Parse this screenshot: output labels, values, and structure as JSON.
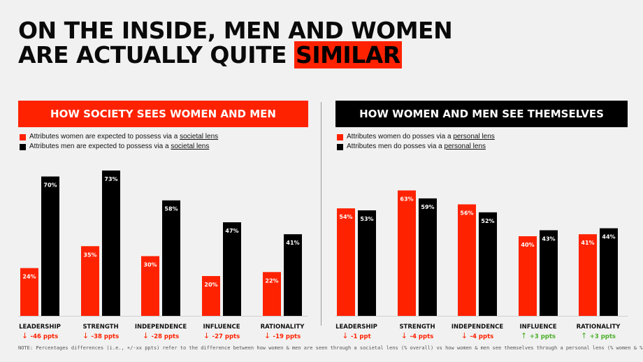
{
  "title": {
    "line1": "ON THE INSIDE, MEN AND WOMEN",
    "line2_prefix": "ARE ACTUALLY QUITE ",
    "line2_highlight": "SIMILAR"
  },
  "colors": {
    "women": "#ff2200",
    "men": "#000000",
    "down": "#ff2200",
    "up": "#4caf2a"
  },
  "note": "NOTE: Percentages differences (i.e., +/-xx ppts) refer to the difference between how women & men are seen through a societal lens (% overall) vs how women & men see themselves through a personal lens (% women & % men)",
  "chart_data": [
    {
      "type": "bar",
      "title": "HOW SOCIETY SEES WOMEN AND MEN",
      "legend": [
        {
          "text": "Attributes women are expected to possess via a ",
          "link": "societal lens"
        },
        {
          "text": "Attributes men are expected to possess via a ",
          "link": "societal lens"
        }
      ],
      "categories": [
        "LEADERSHIP",
        "STRENGTH",
        "INDEPENDENCE",
        "INFLUENCE",
        "RATIONALITY"
      ],
      "series": [
        {
          "values": [
            24,
            35,
            30,
            20,
            22
          ],
          "labels": [
            "24%",
            "35%",
            "30%",
            "20%",
            "22%"
          ]
        },
        {
          "values": [
            70,
            73,
            58,
            47,
            41
          ],
          "labels": [
            "70%",
            "73%",
            "58%",
            "47%",
            "41%"
          ]
        }
      ],
      "differences": [
        {
          "arrow": "↓",
          "text": "-46 ppts",
          "dir": "down"
        },
        {
          "arrow": "↓",
          "text": "-38 ppts",
          "dir": "down"
        },
        {
          "arrow": "↓",
          "text": "-28 ppts",
          "dir": "down"
        },
        {
          "arrow": "↓",
          "text": "-27 ppts",
          "dir": "down"
        },
        {
          "arrow": "↓",
          "text": "-19 ppts",
          "dir": "down"
        }
      ],
      "ylim": [
        0,
        75
      ]
    },
    {
      "type": "bar",
      "title": "HOW WOMEN AND MEN SEE THEMSELVES",
      "legend": [
        {
          "text": "Attributes women do posses via a ",
          "link": "personal lens"
        },
        {
          "text": "Attributes men do posses via a ",
          "link": "personal lens"
        }
      ],
      "categories": [
        "LEADERSHIP",
        "STRENGTH",
        "INDEPENDENCE",
        "INFLUENCE",
        "RATIONALITY"
      ],
      "series": [
        {
          "values": [
            54,
            63,
            56,
            40,
            41
          ],
          "labels": [
            "54%",
            "63%",
            "56%",
            "40%",
            "41%"
          ]
        },
        {
          "values": [
            53,
            59,
            52,
            43,
            44
          ],
          "labels": [
            "53%",
            "59%",
            "52%",
            "43%",
            "44%"
          ]
        }
      ],
      "differences": [
        {
          "arrow": "↓",
          "text": "-1 ppt",
          "dir": "down"
        },
        {
          "arrow": "↓",
          "text": "-4 ppts",
          "dir": "down"
        },
        {
          "arrow": "↓",
          "text": "-4 ppts",
          "dir": "down"
        },
        {
          "arrow": "↑",
          "text": "+3 ppts",
          "dir": "up"
        },
        {
          "arrow": "↑",
          "text": "+3 ppts",
          "dir": "up"
        }
      ],
      "ylim": [
        0,
        75
      ]
    }
  ]
}
